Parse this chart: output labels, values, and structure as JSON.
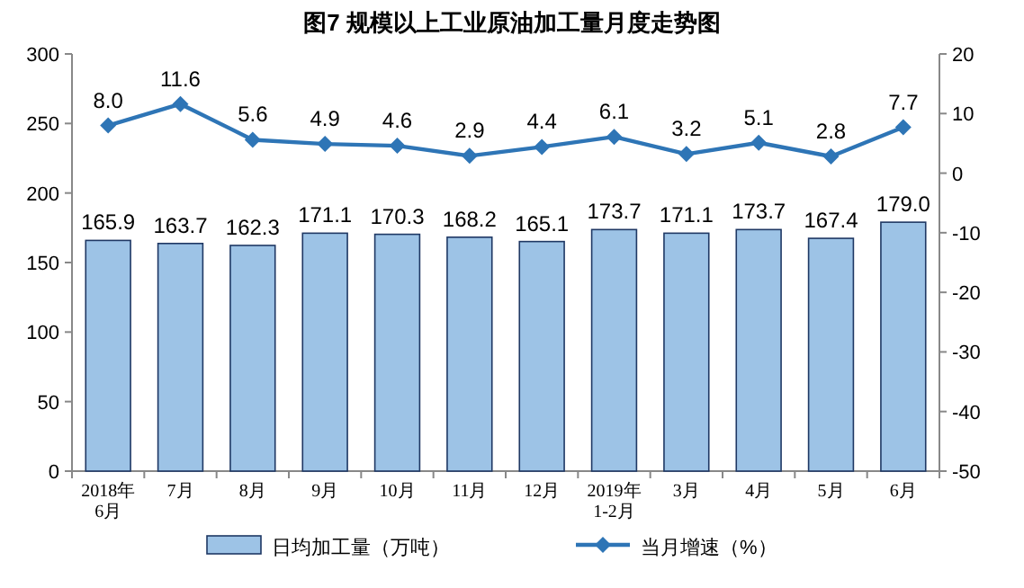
{
  "chart_data": {
    "type": "bar",
    "title": "图7 规模以上工业原油加工量月度走势图",
    "categories": [
      "2018年\n6月",
      "7月",
      "8月",
      "9月",
      "10月",
      "11月",
      "12月",
      "2019年\n1-2月",
      "3月",
      "4月",
      "5月",
      "6月"
    ],
    "series": [
      {
        "name": "日均加工量（万吨）",
        "color": "#9dc3e6",
        "values": [
          165.9,
          163.7,
          162.3,
          171.1,
          170.3,
          168.2,
          165.1,
          173.7,
          171.1,
          173.7,
          167.4,
          179.0
        ],
        "value_labels": [
          "165.9",
          "163.7",
          "162.3",
          "171.1",
          "170.3",
          "168.2",
          "165.1",
          "173.7",
          "171.1",
          "173.7",
          "167.4",
          "179.0"
        ]
      },
      {
        "name": "当月增速（%）",
        "type": "line",
        "axis": "y2",
        "marker": "diamond",
        "color": "#2e75b6",
        "values": [
          8.0,
          11.6,
          5.6,
          4.9,
          4.6,
          2.9,
          4.4,
          6.1,
          3.2,
          5.1,
          2.8,
          7.7
        ],
        "value_labels": [
          "8.0",
          "11.6",
          "5.6",
          "4.9",
          "4.6",
          "2.9",
          "4.4",
          "6.1",
          "3.2",
          "5.1",
          "2.8",
          "7.7"
        ]
      }
    ],
    "ylim": [
      0,
      300
    ],
    "yticks": [
      0,
      50,
      100,
      150,
      200,
      250,
      300
    ],
    "y2lim": [
      -50,
      20
    ],
    "y2ticks": [
      -50,
      -40,
      -30,
      -20,
      -10,
      0,
      10,
      20
    ],
    "legend": "bottom"
  }
}
